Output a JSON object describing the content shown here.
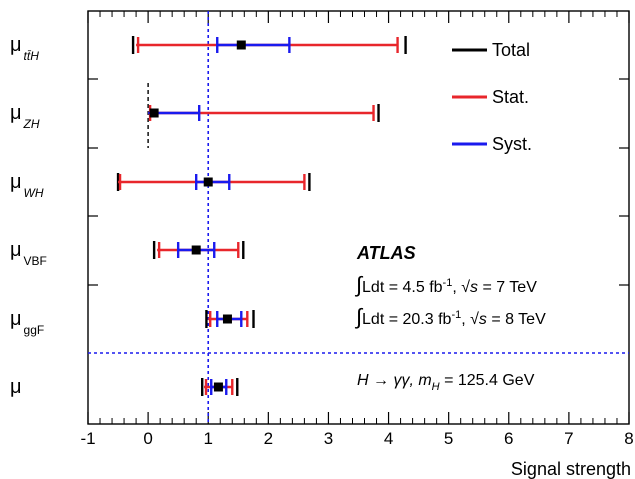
{
  "chart_data": {
    "type": "error-bar",
    "xlabel": "Signal strength",
    "xlim": [
      -1,
      8
    ],
    "x_ticks": [
      "-1",
      "0",
      "1",
      "2",
      "3",
      "4",
      "5",
      "6",
      "7",
      "8"
    ],
    "reference_line": 1,
    "rows": [
      {
        "label": "μ",
        "sub": "tt̄H",
        "value": 1.55,
        "total": [
          -0.25,
          4.25
        ],
        "stat": [
          -0.2,
          4.15
        ],
        "syst": [
          1.15,
          2.35
        ]
      },
      {
        "label": "μ",
        "sub": "ZH",
        "value": 0.1,
        "total": [
          0.0,
          3.8
        ],
        "stat": [
          0.0,
          3.75
        ],
        "syst": [
          0.0,
          0.85
        ],
        "truncated_low": true
      },
      {
        "label": "μ",
        "sub": "WH",
        "value": 1.0,
        "total": [
          -0.5,
          2.65
        ],
        "stat": [
          -0.5,
          2.6
        ],
        "syst": [
          0.8,
          1.35
        ]
      },
      {
        "label": "μ",
        "sub": "VBF",
        "value": 0.8,
        "total": [
          0.1,
          1.55
        ],
        "stat": [
          0.15,
          1.5
        ],
        "syst": [
          0.5,
          1.1
        ]
      },
      {
        "label": "μ",
        "sub": "ggF",
        "value": 1.32,
        "total": [
          0.97,
          1.72
        ],
        "stat": [
          1.0,
          1.65
        ],
        "syst": [
          1.15,
          1.55
        ]
      },
      {
        "label": "μ",
        "sub": "",
        "value": 1.17,
        "total": [
          0.9,
          1.45
        ],
        "stat": [
          0.93,
          1.4
        ],
        "syst": [
          1.05,
          1.3
        ]
      }
    ],
    "legend": [
      {
        "name": "Total",
        "color": "#000000"
      },
      {
        "name": "Stat.",
        "color": "#e8262b"
      },
      {
        "name": "Syst.",
        "color": "#1a1aee"
      }
    ],
    "legend_position": "top-right",
    "annotations": {
      "experiment": "ATLAS",
      "lumi_7tev": "Ldt = 4.5 fb",
      "lumi_7tev_exp": "-1",
      "lumi_7tev_energy": "s = 7 TeV",
      "lumi_8tev": "Ldt = 20.3 fb",
      "lumi_8tev_exp": "-1",
      "lumi_8tev_energy": "s = 8 TeV",
      "channel": "H → γγ, m",
      "channel_sub": "H",
      "channel_mass": " = 125.4 GeV"
    }
  }
}
